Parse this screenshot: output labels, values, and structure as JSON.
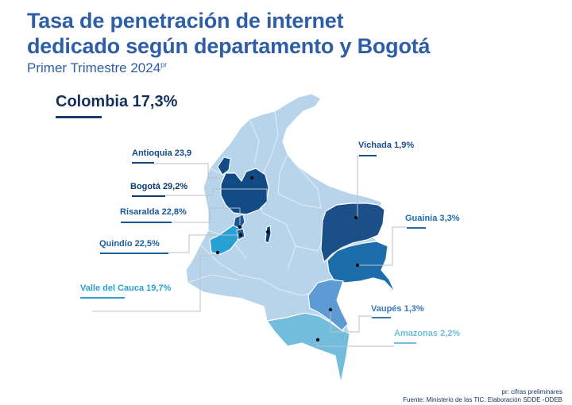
{
  "header": {
    "title_line1": "Tasa de penetración de internet",
    "title_line2": "dedicado según departamento y Bogotá",
    "subtitle": "Primer Trimestre 2024",
    "subtitle_mark": "pr"
  },
  "national": {
    "label": "Colombia 17,3%",
    "value": 17.3,
    "rule_color": "#1c3b70"
  },
  "regions": [
    {
      "name": "Antioquia",
      "label": "Antioquia 23,9",
      "value": 23.9,
      "color": "#114a85"
    },
    {
      "name": "Bogotá",
      "label": "Bogotá 29,2%",
      "value": 29.2,
      "color": "#0d3b70"
    },
    {
      "name": "Risaralda",
      "label": "Risaralda 22,8%",
      "value": 22.8,
      "color": "#1a5797"
    },
    {
      "name": "Quindío",
      "label": "Quindío 22,5%",
      "value": 22.5,
      "color": "#1c5e9e"
    },
    {
      "name": "Valle del Cauca",
      "label": "Valle del Cauca 19,7%",
      "value": 19.7,
      "color": "#29a0d4"
    },
    {
      "name": "Vichada",
      "label": "Vichada 1,9%",
      "value": 1.9,
      "color": "#1c4f88"
    },
    {
      "name": "Guainía",
      "label": "Guainía 3,3%",
      "value": 3.3,
      "color": "#1c6eaa"
    },
    {
      "name": "Vaupés",
      "label": "Vaupés 1,3%",
      "value": 1.3,
      "color": "#3a78bc"
    },
    {
      "name": "Amazonas",
      "label": "Amazonas 2,2%",
      "value": 2.2,
      "color": "#72bcdc"
    }
  ],
  "colors": {
    "title": "#2e5fa6",
    "base_map": "#b8d4ea",
    "department_border": "#e4eef7",
    "leader_line": "#b7c2d0"
  },
  "footer": {
    "note": "pr: cifras preliminares",
    "source": "Fuente: Ministerio de las TIC. Elaboración SDDE -ODEB"
  }
}
